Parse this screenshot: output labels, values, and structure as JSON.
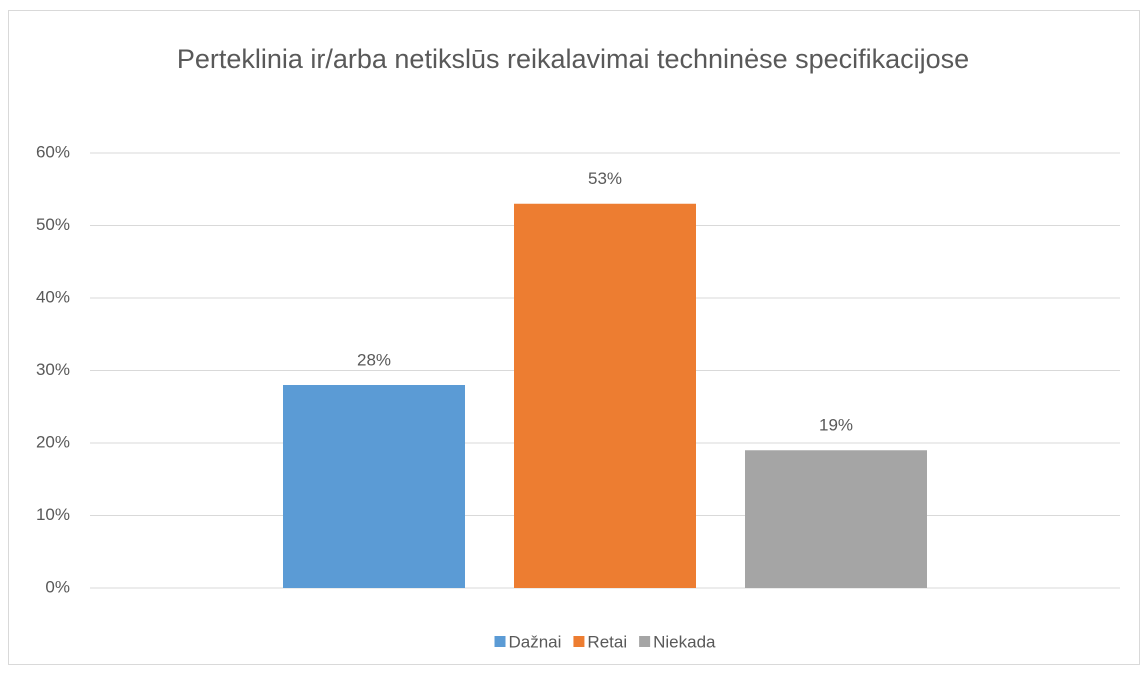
{
  "chart_data": {
    "type": "bar",
    "title": "Perteklinia ir/arba netikslūs reikalavimai techninėse specifikacijose",
    "categories": [
      null
    ],
    "series": [
      {
        "name": "Dažnai",
        "color": "#5b9bd5",
        "values": [
          28
        ],
        "value_labels": [
          "28%"
        ]
      },
      {
        "name": "Retai",
        "color": "#ed7d31",
        "values": [
          53
        ],
        "value_labels": [
          "53%"
        ]
      },
      {
        "name": "Niekada",
        "color": "#a5a5a5",
        "values": [
          19
        ],
        "value_labels": [
          "19%"
        ]
      }
    ],
    "ylim": [
      0,
      60
    ],
    "yticks": [
      {
        "value": 0,
        "label": "0%"
      },
      {
        "value": 10,
        "label": "10%"
      },
      {
        "value": 20,
        "label": "20%"
      },
      {
        "value": 30,
        "label": "30%"
      },
      {
        "value": 40,
        "label": "40%"
      },
      {
        "value": 50,
        "label": "50%"
      },
      {
        "value": 60,
        "label": "60%"
      }
    ],
    "grid": true,
    "legend": "bottom"
  }
}
